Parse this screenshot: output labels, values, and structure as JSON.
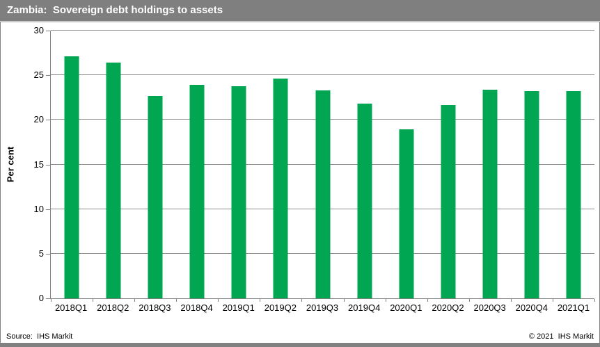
{
  "title_bar": {
    "title": "Zambia:  Sovereign debt holdings to assets"
  },
  "footer": {
    "source": "Source:  IHS Markit",
    "copyright": "© 2021  IHS Markit"
  },
  "colors": {
    "bar_green": "#00A651",
    "title_bar_gray": "#7F7F7F",
    "gridline_gray": "#8C8C8C",
    "border_gray": "#808080"
  },
  "chart_data": {
    "type": "bar",
    "title": "Zambia:  Sovereign debt holdings to assets",
    "categories": [
      "2018Q1",
      "2018Q2",
      "2018Q3",
      "2018Q4",
      "2019Q1",
      "2019Q2",
      "2019Q3",
      "2019Q4",
      "2020Q1",
      "2020Q2",
      "2020Q3",
      "2020Q4",
      "2021Q1"
    ],
    "values": [
      27.1,
      26.4,
      22.7,
      23.9,
      23.8,
      24.6,
      23.3,
      21.8,
      18.9,
      21.7,
      23.4,
      23.2,
      23.2
    ],
    "xlabel": "",
    "ylabel": "Per cent",
    "ylim": [
      0,
      30
    ],
    "ytick_step": 5,
    "yticks": [
      0,
      5,
      10,
      15,
      20,
      25,
      30
    ],
    "grid": true,
    "legend": "none",
    "bar_color": "#00A651"
  }
}
